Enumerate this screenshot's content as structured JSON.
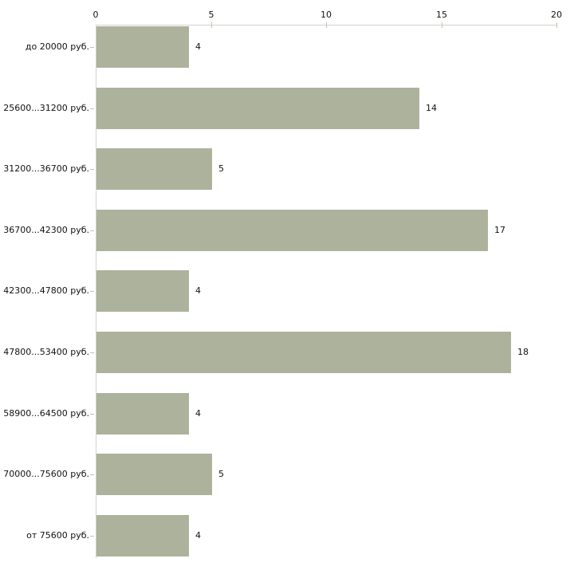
{
  "chart_data": {
    "type": "bar",
    "orientation": "horizontal",
    "title": "",
    "xlabel": "",
    "ylabel": "",
    "categories": [
      "до 20000 руб.",
      "25600...31200 руб.",
      "31200...36700 руб.",
      "36700...42300 руб.",
      "42300...47800 руб.",
      "47800...53400 руб.",
      "58900...64500 руб.",
      "70000...75600 руб.",
      "от 75600 руб."
    ],
    "values": [
      4,
      14,
      5,
      17,
      4,
      18,
      4,
      5,
      4
    ],
    "value_labels": [
      "4",
      "14",
      "5",
      "17",
      "4",
      "18",
      "4",
      "5",
      "4"
    ],
    "axis_ticks": [
      0,
      5,
      10,
      15,
      20
    ],
    "axis_tick_labels": [
      "0",
      "5",
      "10",
      "15",
      "20"
    ],
    "xlim": [
      0,
      20
    ],
    "grid": false,
    "legend": false,
    "axis_position": "top",
    "colors": {
      "bar_fill": "#adb29c",
      "axis_line": "#d2d2d0",
      "axis_tick": "#c5c6a2",
      "category_tick": "#c9bcb4",
      "text": "#111111",
      "background": "#ffffff"
    }
  }
}
